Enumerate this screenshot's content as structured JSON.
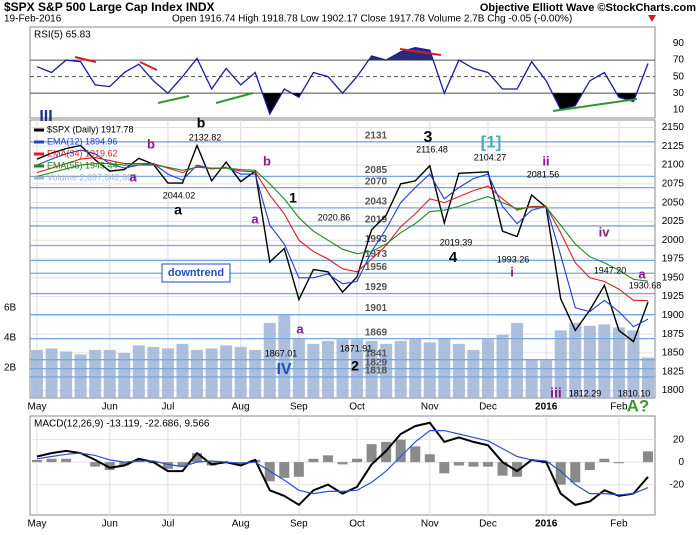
{
  "header": {
    "title": "$SPX S&P 500 Large Cap Index INDX",
    "date": "19-Feb-2016",
    "quote": "Open 1916.74 High 1918.78 Low 1902.17 Close 1917.78 Volume 2.7B Chg -0.05 (-0.00%)",
    "source": "Objective Elliott Wave ©StockCharts.com"
  },
  "chart_data": [
    {
      "type": "line",
      "title": "RSI(5) 65.83",
      "color": "#1a1aa0",
      "values": [
        62,
        55,
        70,
        68,
        40,
        38,
        55,
        65,
        45,
        30,
        50,
        72,
        35,
        60,
        40,
        55,
        5,
        35,
        25,
        55,
        50,
        30,
        50,
        75,
        70,
        80,
        85,
        82,
        30,
        70,
        60,
        55,
        35,
        35,
        68,
        45,
        10,
        15,
        45,
        55,
        25,
        20,
        65.83
      ],
      "ylim": [
        0,
        110
      ],
      "yticks": [
        10,
        30,
        50,
        70,
        90
      ],
      "levels": [
        30,
        50,
        70
      ]
    },
    {
      "type": "line",
      "categories": [
        "May",
        null,
        null,
        null,
        null,
        "Jun",
        null,
        null,
        null,
        "Jul",
        null,
        null,
        null,
        null,
        "Aug",
        null,
        null,
        null,
        "Sep",
        null,
        null,
        null,
        "Oct",
        null,
        null,
        null,
        null,
        "Nov",
        null,
        null,
        null,
        "Dec",
        null,
        null,
        null,
        "2016",
        null,
        null,
        null,
        null,
        "Feb",
        null,
        null
      ],
      "series": [
        {
          "name": "$SPX (Daily) 1917.78",
          "color": "#000000",
          "values": [
            2108,
            2116,
            2122,
            2126,
            2107,
            2092,
            2094,
            2109,
            2101,
            2076,
            2076,
            2126,
            2079,
            2104,
            2078,
            2092,
            1971,
            1989,
            1921,
            1961,
            1958,
            1931,
            1951,
            2014,
            2033,
            2075,
            2079,
            2099,
            2023,
            2089,
            2090,
            2091,
            2012,
            2005,
            2060,
            2044,
            1922,
            1880,
            1907,
            1940,
            1880,
            1865,
            1917.78
          ]
        },
        {
          "name": "EMA(12) 1894.96",
          "color": "#1f3fd0",
          "values": [
            2100,
            2108,
            2115,
            2120,
            2115,
            2102,
            2096,
            2100,
            2102,
            2088,
            2080,
            2100,
            2095,
            2097,
            2088,
            2088,
            2020,
            1995,
            1950,
            1950,
            1955,
            1942,
            1945,
            1985,
            2015,
            2050,
            2070,
            2088,
            2055,
            2070,
            2082,
            2088,
            2045,
            2022,
            2040,
            2045,
            1980,
            1910,
            1905,
            1920,
            1905,
            1885,
            1894.96
          ]
        },
        {
          "name": "EMA(34) 1919.62",
          "color": "#d42020",
          "values": [
            2090,
            2096,
            2102,
            2108,
            2110,
            2106,
            2102,
            2102,
            2102,
            2096,
            2090,
            2098,
            2095,
            2096,
            2092,
            2091,
            2060,
            2035,
            2000,
            1985,
            1975,
            1962,
            1958,
            1975,
            1993,
            2018,
            2035,
            2055,
            2050,
            2058,
            2066,
            2072,
            2055,
            2040,
            2045,
            2045,
            2010,
            1970,
            1950,
            1945,
            1935,
            1920,
            1919.62
          ]
        },
        {
          "name": "EMA(55) 1945.44",
          "color": "#1e8a1e",
          "values": [
            2085,
            2090,
            2095,
            2100,
            2102,
            2102,
            2100,
            2100,
            2100,
            2097,
            2093,
            2097,
            2096,
            2096,
            2094,
            2093,
            2075,
            2055,
            2030,
            2012,
            2000,
            1988,
            1982,
            1985,
            1995,
            2010,
            2022,
            2038,
            2040,
            2045,
            2052,
            2058,
            2050,
            2042,
            2044,
            2044,
            2020,
            1995,
            1978,
            1970,
            1960,
            1948,
            1945.44
          ]
        },
        {
          "name": "Volume 2,697,042,688",
          "color": "#9fb4d6",
          "axis": "y2",
          "values": [
            3200000000,
            3300000000,
            3100000000,
            2900000000,
            3200000000,
            3200000000,
            3000000000,
            3500000000,
            3400000000,
            3300000000,
            3600000000,
            3200000000,
            3300000000,
            3500000000,
            3400000000,
            3200000000,
            5000000000,
            5500000000,
            4000000000,
            3600000000,
            3800000000,
            3900000000,
            3900000000,
            3800000000,
            3600000000,
            3800000000,
            3900000000,
            3700000000,
            4000000000,
            3600000000,
            3200000000,
            3900000000,
            4200000000,
            5000000000,
            2600000000,
            2500000000,
            4500000000,
            5000000000,
            4800000000,
            4900000000,
            4700000000,
            4500000000,
            2697042688
          ]
        }
      ],
      "ylim": [
        1790,
        2160
      ],
      "yticks": [
        1800,
        1825,
        1850,
        1875,
        1900,
        1925,
        1950,
        1975,
        2000,
        2025,
        2050,
        2075,
        2100,
        2125,
        2150
      ],
      "y2lim": [
        0,
        18500000000
      ],
      "y2ticks": [
        {
          "value": 2000000000,
          "label": "2B"
        },
        {
          "value": 4000000000,
          "label": "4B"
        },
        {
          "value": 6000000000,
          "label": "6B"
        }
      ],
      "grid": true,
      "levels": [
        2131,
        2085,
        2070,
        2043,
        2019,
        1993,
        1973,
        1956,
        1929,
        1901,
        1869,
        1841,
        1829,
        1818
      ],
      "annotations": [
        {
          "text": "III",
          "color": "#1a2f8a"
        },
        {
          "text": "b",
          "color": "#000000"
        },
        {
          "text": "2132.82",
          "color": "#000000"
        },
        {
          "text": "b",
          "color": "#8b1a8b"
        },
        {
          "text": "a",
          "color": "#8b1a8b"
        },
        {
          "text": "2044.02",
          "color": "#000000"
        },
        {
          "text": "a",
          "color": "#000000"
        },
        {
          "text": "b",
          "color": "#8b1a8b"
        },
        {
          "text": "a",
          "color": "#8b1a8b"
        },
        {
          "text": "2020.86",
          "color": "#000000"
        },
        {
          "text": "1",
          "color": "#000000"
        },
        {
          "text": "1867.01",
          "color": "#000000"
        },
        {
          "text": "IV",
          "color": "#1f4fc0"
        },
        {
          "text": "a",
          "color": "#8b1a8b"
        },
        {
          "text": "1871.91",
          "color": "#000000"
        },
        {
          "text": "2",
          "color": "#000000"
        },
        {
          "text": "3",
          "color": "#000000"
        },
        {
          "text": "2116.48",
          "color": "#000000"
        },
        {
          "text": "[1]",
          "color": "#3fb3b3"
        },
        {
          "text": "2104.27",
          "color": "#000000"
        },
        {
          "text": "ii",
          "color": "#8b1a8b"
        },
        {
          "text": "2081.56",
          "color": "#000000"
        },
        {
          "text": "4",
          "color": "#000000"
        },
        {
          "text": "2019.39",
          "color": "#000000"
        },
        {
          "text": "1993.26",
          "color": "#000000"
        },
        {
          "text": "i",
          "color": "#8b1a8b"
        },
        {
          "text": "iii",
          "color": "#8b1a8b"
        },
        {
          "text": "1812.29",
          "color": "#000000"
        },
        {
          "text": "iv",
          "color": "#8b1a8b"
        },
        {
          "text": "1947.20",
          "color": "#000000"
        },
        {
          "text": "a",
          "color": "#8b1a8b"
        },
        {
          "text": "1930.68",
          "color": "#000000"
        },
        {
          "text": "1810.10",
          "color": "#000000"
        },
        {
          "text": "A?",
          "color": "#3a9a2a"
        },
        {
          "text": "downtrend",
          "color": "#1f4fc0"
        }
      ]
    },
    {
      "type": "line",
      "title": "MACD(12,26,9) -13.119, -22.686, 9.566",
      "categories": [
        "May",
        null,
        null,
        null,
        null,
        "Jun",
        null,
        null,
        null,
        "Jul",
        null,
        null,
        null,
        null,
        "Aug",
        null,
        null,
        null,
        "Sep",
        null,
        null,
        null,
        "Oct",
        null,
        null,
        null,
        null,
        "Nov",
        null,
        null,
        null,
        "Dec",
        null,
        null,
        null,
        "2016",
        null,
        null,
        null,
        null,
        "Feb",
        null,
        null
      ],
      "series": [
        {
          "type": "bar",
          "color": "#8a8a8a",
          "values": [
            2,
            3,
            3,
            0,
            -4,
            -7,
            -3,
            2,
            -1,
            -6,
            -4,
            8,
            -3,
            0,
            -2,
            2,
            -17,
            -14,
            -13,
            3,
            6,
            -2,
            3,
            16,
            18,
            20,
            14,
            7,
            -10,
            -3,
            -4,
            -4,
            -12,
            -13,
            0,
            -1,
            -20,
            -18,
            -7,
            3,
            -1,
            0,
            9.566
          ]
        },
        {
          "type": "line",
          "color": "#000000",
          "values": [
            5,
            8,
            10,
            8,
            2,
            -5,
            -3,
            3,
            0,
            -8,
            -8,
            8,
            -2,
            0,
            -3,
            2,
            -25,
            -30,
            -38,
            -25,
            -20,
            -28,
            -22,
            -2,
            10,
            25,
            32,
            35,
            18,
            22,
            18,
            15,
            0,
            -8,
            2,
            0,
            -28,
            -38,
            -35,
            -25,
            -30,
            -28,
            -13.119
          ]
        },
        {
          "type": "line",
          "color": "#3050d0",
          "values": [
            3,
            5,
            7,
            8,
            6,
            2,
            0,
            1,
            1,
            -2,
            -4,
            0,
            1,
            0,
            -1,
            0,
            -8,
            -16,
            -25,
            -28,
            -26,
            -26,
            -25,
            -18,
            -8,
            5,
            18,
            28,
            28,
            25,
            22,
            19,
            12,
            5,
            2,
            1,
            -8,
            -20,
            -28,
            -28,
            -29,
            -28,
            -22.686
          ]
        }
      ],
      "ylim": [
        -47,
        41
      ],
      "yticks": [
        -20,
        0,
        20
      ],
      "grid": true
    }
  ]
}
